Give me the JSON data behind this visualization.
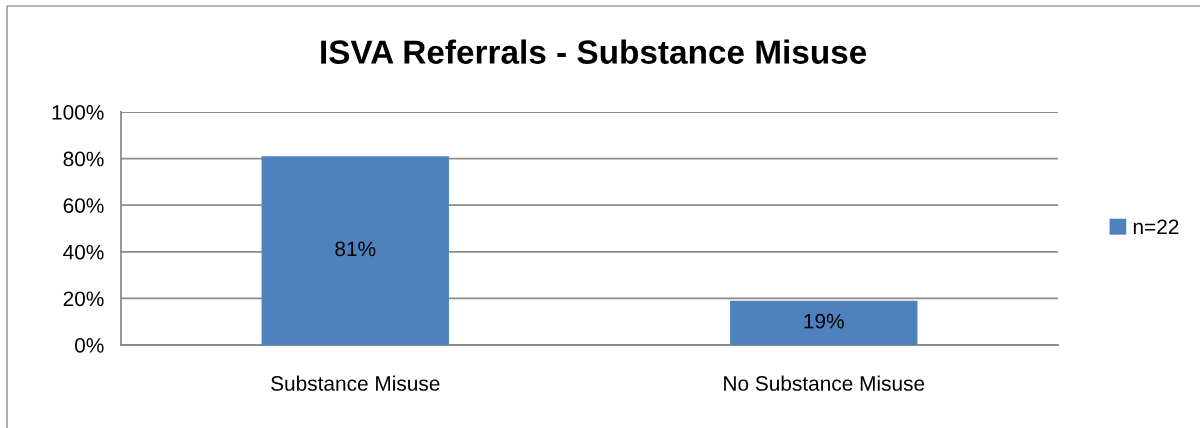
{
  "chart_data": {
    "type": "bar",
    "title": "ISVA Referrals - Substance Misuse",
    "categories": [
      "Substance Misuse",
      "No Substance Misuse"
    ],
    "series": [
      {
        "name": "n=22",
        "color": "#4f81bd",
        "values": [
          81,
          19
        ],
        "value_labels": [
          "81%",
          "19%"
        ]
      }
    ],
    "ylim": [
      0,
      100
    ],
    "yticks": [
      {
        "value": 0,
        "label": "0%"
      },
      {
        "value": 20,
        "label": "20%"
      },
      {
        "value": 40,
        "label": "40%"
      },
      {
        "value": 60,
        "label": "60%"
      },
      {
        "value": 80,
        "label": "80%"
      },
      {
        "value": 100,
        "label": "100%"
      }
    ],
    "grid": "y",
    "legend": "right"
  }
}
